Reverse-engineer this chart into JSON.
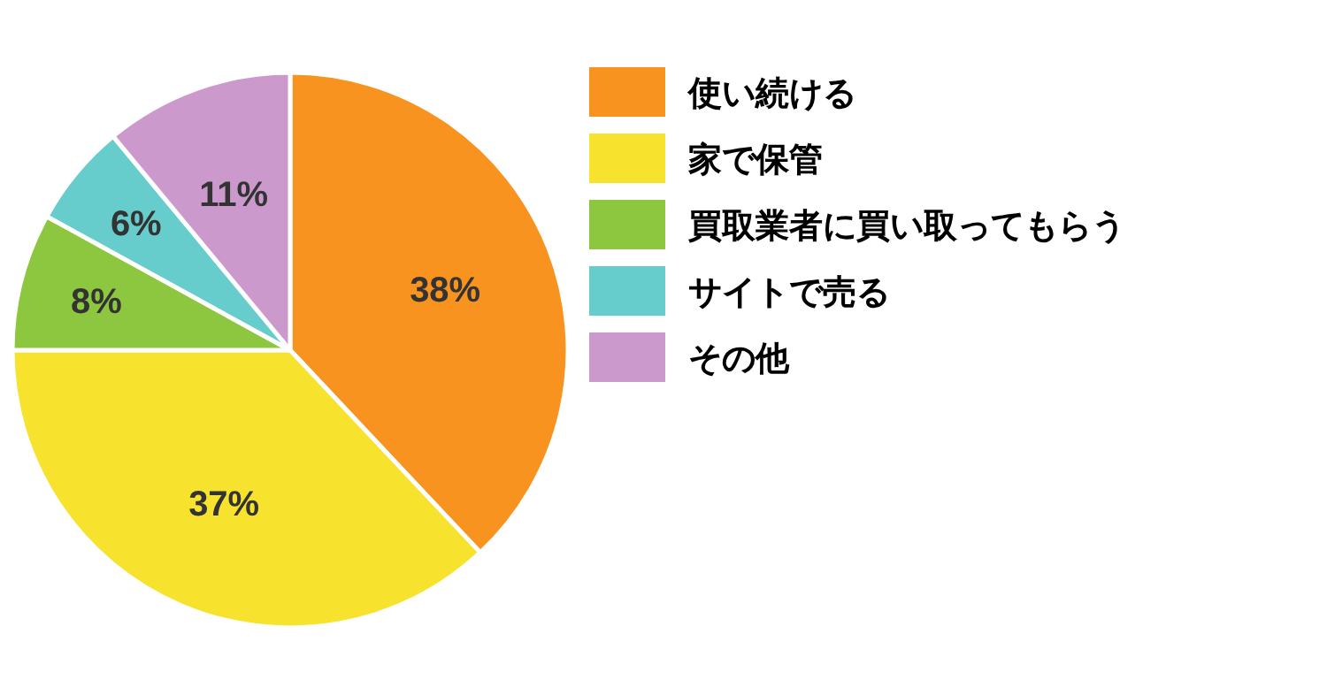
{
  "chart_data": {
    "type": "pie",
    "categories": [
      "使い続ける",
      "家で保管",
      "買取業者に買い取ってもらう",
      "サイトで売る",
      "その他"
    ],
    "values": [
      38,
      37,
      8,
      6,
      11
    ],
    "colors": [
      "#f7931e",
      "#f7e22d",
      "#8dc63f",
      "#66cccc",
      "#cc99cc"
    ],
    "value_labels": [
      "38%",
      "37%",
      "8%",
      "6%",
      "11%"
    ],
    "legend": "right"
  }
}
